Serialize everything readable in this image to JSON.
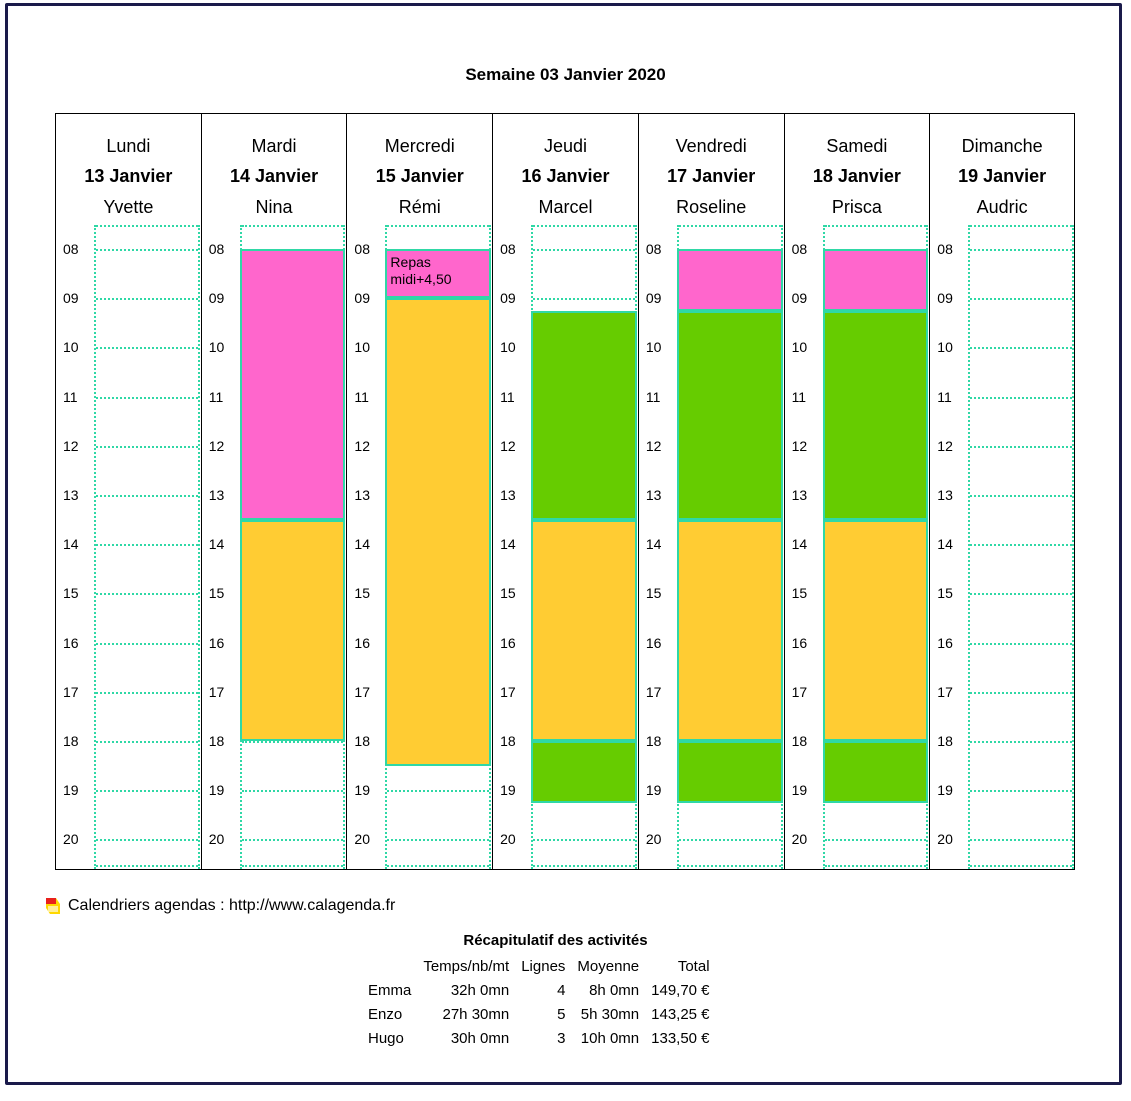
{
  "title": "Semaine 03  Janvier 2020",
  "hours": [
    "08",
    "09",
    "10",
    "11",
    "12",
    "13",
    "14",
    "15",
    "16",
    "17",
    "18",
    "19",
    "20"
  ],
  "colors": {
    "pink": "#ff66cc",
    "orange": "#ffcc33",
    "green": "#66cc00",
    "dotted": "#2fd8a6"
  },
  "days": [
    {
      "name": "Lundi",
      "date": "13 Janvier",
      "person": "Yvette",
      "blocks": []
    },
    {
      "name": "Mardi",
      "date": "14 Janvier",
      "person": "Nina",
      "blocks": [
        {
          "start": 8,
          "end": 13.5,
          "color": "pink",
          "note": ""
        },
        {
          "start": 13.5,
          "end": 18,
          "color": "orange",
          "note": ""
        }
      ]
    },
    {
      "name": "Mercredi",
      "date": "15 Janvier",
      "person": "Rémi",
      "blocks": [
        {
          "start": 8,
          "end": 9,
          "color": "pink",
          "note": "Repas\nmidi+4,50"
        },
        {
          "start": 9,
          "end": 18.5,
          "color": "orange",
          "note": ""
        }
      ]
    },
    {
      "name": "Jeudi",
      "date": "16 Janvier",
      "person": "Marcel",
      "blocks": [
        {
          "start": 9.25,
          "end": 13.5,
          "color": "green",
          "note": ""
        },
        {
          "start": 13.5,
          "end": 18,
          "color": "orange",
          "note": ""
        },
        {
          "start": 18,
          "end": 19.25,
          "color": "green",
          "note": ""
        }
      ]
    },
    {
      "name": "Vendredi",
      "date": "17 Janvier",
      "person": "Roseline",
      "blocks": [
        {
          "start": 8,
          "end": 9.25,
          "color": "pink",
          "note": ""
        },
        {
          "start": 9.25,
          "end": 13.5,
          "color": "green",
          "note": ""
        },
        {
          "start": 13.5,
          "end": 18,
          "color": "orange",
          "note": ""
        },
        {
          "start": 18,
          "end": 19.25,
          "color": "green",
          "note": ""
        }
      ]
    },
    {
      "name": "Samedi",
      "date": "18 Janvier",
      "person": "Prisca",
      "blocks": [
        {
          "start": 8,
          "end": 9.25,
          "color": "pink",
          "note": ""
        },
        {
          "start": 9.25,
          "end": 13.5,
          "color": "green",
          "note": ""
        },
        {
          "start": 13.5,
          "end": 18,
          "color": "orange",
          "note": ""
        },
        {
          "start": 18,
          "end": 19.25,
          "color": "green",
          "note": ""
        }
      ]
    },
    {
      "name": "Dimanche",
      "date": "19 Janvier",
      "person": "Audric",
      "blocks": []
    }
  ],
  "footer": {
    "text": "Calendriers agendas : http://www.calagenda.fr"
  },
  "recap": {
    "title": "Récapitulatif des activités",
    "headers": [
      "",
      "Temps/nb/mt",
      "Lignes",
      "Moyenne",
      "Total"
    ],
    "rows": [
      {
        "name": "Emma",
        "temps": "32h 0mn",
        "lignes": "4",
        "moyenne": "8h 0mn",
        "total": "149,70  €"
      },
      {
        "name": "Enzo",
        "temps": "27h 30mn",
        "lignes": "5",
        "moyenne": "5h 30mn",
        "total": "143,25  €"
      },
      {
        "name": "Hugo",
        "temps": "30h 0mn",
        "lignes": "3",
        "moyenne": "10h 0mn",
        "total": "133,50  €"
      }
    ]
  }
}
